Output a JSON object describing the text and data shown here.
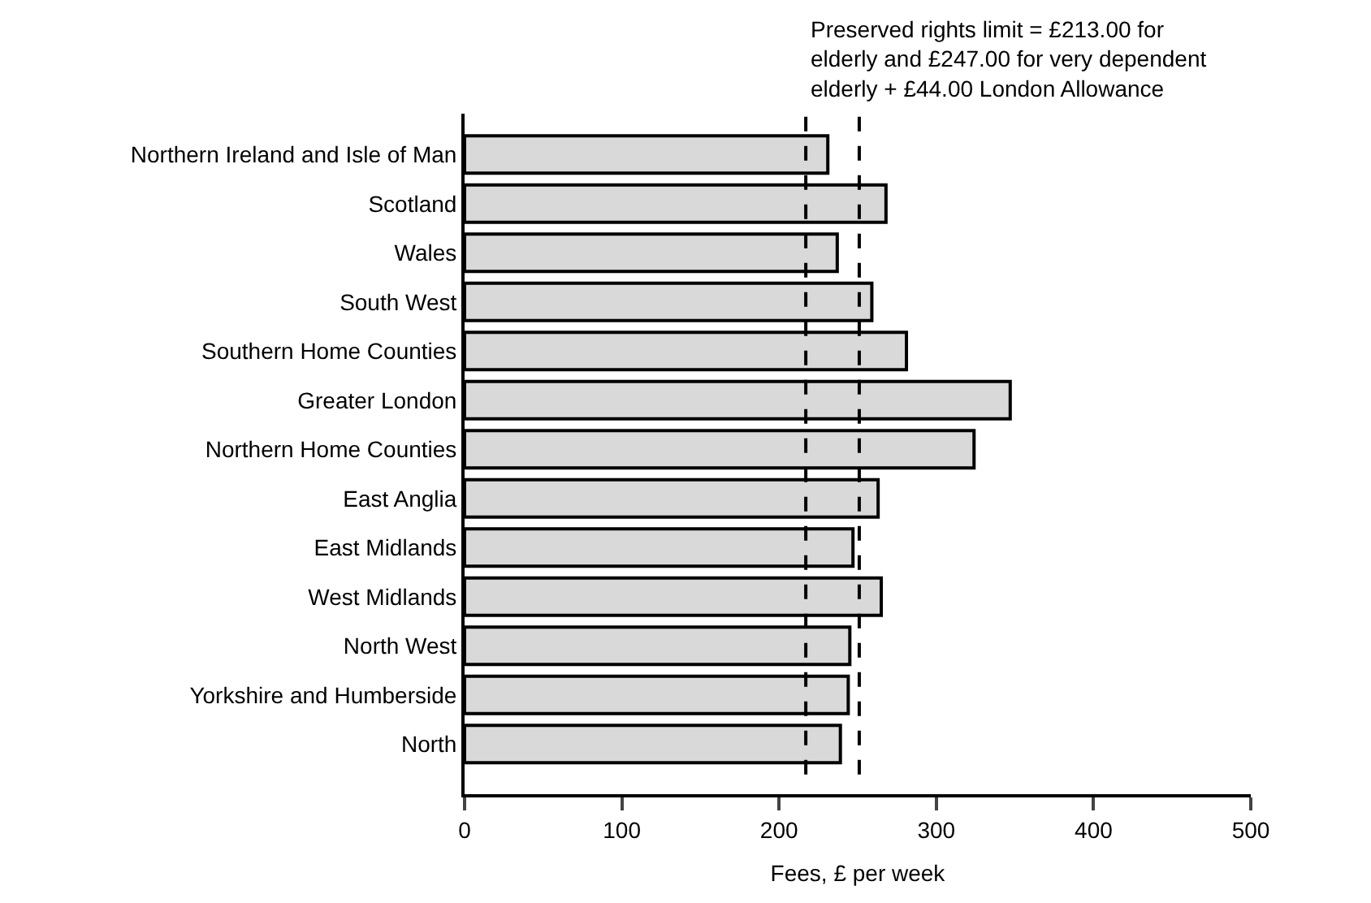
{
  "chart_data": {
    "type": "bar",
    "orientation": "horizontal",
    "xlabel": "Fees, £ per week",
    "categories": [
      "Northern Ireland and Isle of Man",
      "Scotland",
      "Wales",
      "South West",
      "Southern Home Counties",
      "Greater London",
      "Northern Home Counties",
      "East Anglia",
      "East Midlands",
      "West Midlands",
      "North West",
      "Yorkshire and Humberside",
      "North"
    ],
    "values": [
      231,
      268,
      237,
      259,
      281,
      347,
      324,
      263,
      247,
      265,
      245,
      244,
      239
    ],
    "color": "#d9d9d9",
    "xlim": [
      0,
      500
    ],
    "xticks": [
      0,
      100,
      200,
      300,
      400,
      500
    ],
    "legend": false,
    "ref_lines": [
      {
        "axis": "x",
        "value": 217,
        "color": "#000000",
        "line_style": "dashed"
      },
      {
        "axis": "x",
        "value": 251,
        "color": "#000000",
        "line_style": "dashed"
      }
    ],
    "annotations": [
      "Preserved rights limit = £213.00 for\nelderly and £247.00 for very dependent\nelderly + £44.00 London Allowance"
    ]
  }
}
